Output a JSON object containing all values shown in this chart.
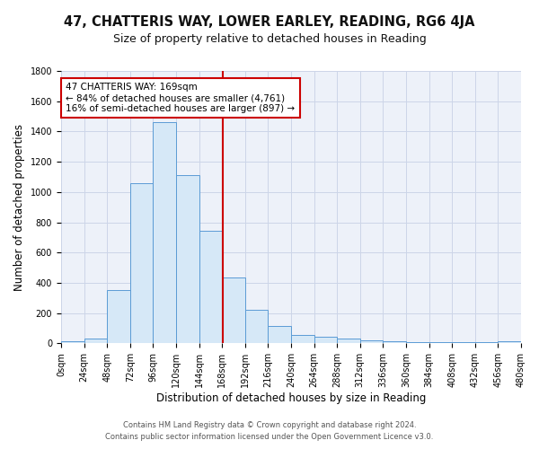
{
  "title1": "47, CHATTERIS WAY, LOWER EARLEY, READING, RG6 4JA",
  "title2": "Size of property relative to detached houses in Reading",
  "xlabel": "Distribution of detached houses by size in Reading",
  "ylabel": "Number of detached properties",
  "bin_edges": [
    0,
    24,
    48,
    72,
    96,
    120,
    144,
    168,
    192,
    216,
    240,
    264,
    288,
    312,
    336,
    360,
    384,
    408,
    432,
    456,
    480
  ],
  "bin_values": [
    15,
    30,
    355,
    1060,
    1460,
    1110,
    745,
    435,
    220,
    115,
    55,
    45,
    30,
    20,
    15,
    8,
    8,
    8,
    8,
    15
  ],
  "bar_facecolor": "#d6e8f7",
  "bar_edgecolor": "#5b9bd5",
  "property_x": 169,
  "vline_color": "#cc0000",
  "annotation_line1": "47 CHATTERIS WAY: 169sqm",
  "annotation_line2": "← 84% of detached houses are smaller (4,761)",
  "annotation_line3": "16% of semi-detached houses are larger (897) →",
  "annotation_box_color": "#ffffff",
  "annotation_box_edgecolor": "#cc0000",
  "ylim": [
    0,
    1800
  ],
  "xlim": [
    0,
    480
  ],
  "grid_color": "#ccd5e8",
  "bg_color": "#edf1f9",
  "footer1": "Contains HM Land Registry data © Crown copyright and database right 2024.",
  "footer2": "Contains public sector information licensed under the Open Government Licence v3.0.",
  "title1_fontsize": 10.5,
  "title2_fontsize": 9,
  "tick_fontsize": 7,
  "ylabel_fontsize": 8.5,
  "xlabel_fontsize": 8.5,
  "annotation_fontsize": 7.5
}
